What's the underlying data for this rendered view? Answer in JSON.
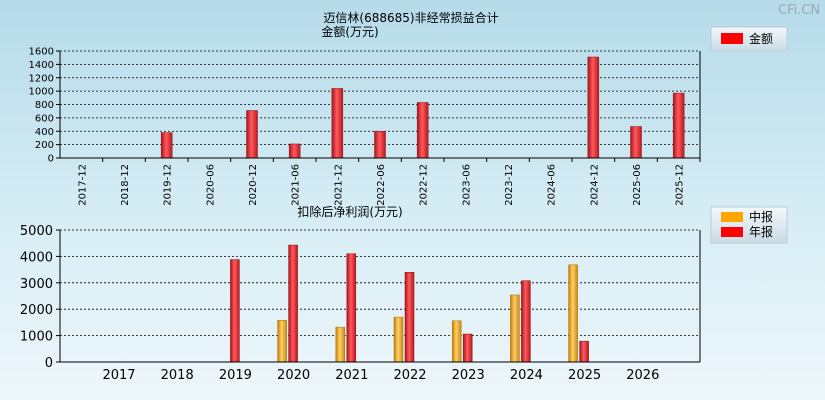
{
  "watermark": "CFi.CN",
  "chart_data": [
    {
      "type": "bar",
      "title": "迈信林(688685)非经常损益合计",
      "subtitle": "金额(万元)",
      "categories": [
        "2017-12",
        "2018-12",
        "2019-12",
        "2020-06",
        "2020-12",
        "2021-06",
        "2021-12",
        "2022-06",
        "2022-12",
        "2023-06",
        "2023-12",
        "2024-06",
        "2024-12",
        "2025-06",
        "2025-12"
      ],
      "series": [
        {
          "name": "金额",
          "color": "#e8252a",
          "values": [
            null,
            null,
            380,
            null,
            710,
            210,
            1040,
            400,
            830,
            null,
            null,
            null,
            1510,
            470,
            970
          ]
        }
      ],
      "ylim": [
        0,
        1600
      ],
      "yticks": [
        0,
        200,
        400,
        600,
        800,
        1000,
        1200,
        1400,
        1600
      ],
      "grid": true,
      "legend": "top-right"
    },
    {
      "type": "bar",
      "title": "扣除后净利润(万元)",
      "categories": [
        "2017",
        "2018",
        "2019",
        "2020",
        "2021",
        "2022",
        "2023",
        "2024",
        "2025",
        "2026"
      ],
      "series": [
        {
          "name": "中报",
          "color": "#f0a818",
          "values": [
            null,
            null,
            null,
            1580,
            1320,
            1700,
            1560,
            2540,
            3680,
            null
          ]
        },
        {
          "name": "年报",
          "color": "#e8252a",
          "values": [
            null,
            null,
            3880,
            4430,
            4100,
            3400,
            1060,
            3080,
            790,
            null
          ]
        }
      ],
      "ylim": [
        0,
        5000
      ],
      "yticks": [
        0,
        1000,
        2000,
        3000,
        4000,
        5000
      ],
      "grid": true,
      "legend": "top-right"
    }
  ]
}
